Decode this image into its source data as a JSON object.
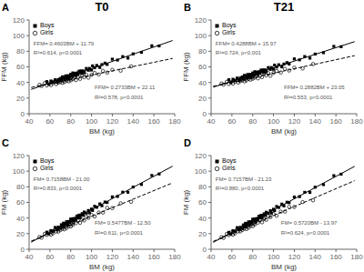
{
  "chart_data": [
    {
      "type": "scatter",
      "title": "T0",
      "panel_label": "A",
      "x_label": "BM (kg)",
      "y_label": "FFM (kg)",
      "xlim": [
        40,
        180
      ],
      "ylim": [
        0,
        120
      ],
      "xticks": [
        40,
        60,
        80,
        100,
        120,
        140,
        160,
        180
      ],
      "yticks": [
        0,
        20,
        40,
        60,
        80,
        100,
        120
      ],
      "legend": "upper left",
      "annotations": [
        "FFM= 0.4603BM + 11.79",
        "R²=0.614, p<0.0001",
        "FFM= 0.2733BM + 22.11",
        "R²=0.578, p<0.0001"
      ],
      "series": [
        {
          "name": "Boys",
          "type": "scatter",
          "marker": "square",
          "color": "#000000",
          "x": [
            57,
            59,
            61,
            63,
            65,
            67,
            68,
            70,
            71,
            72,
            73,
            74,
            75,
            76,
            77,
            78,
            79,
            80,
            81,
            82,
            83,
            84,
            85,
            86,
            87,
            88,
            89,
            90,
            91,
            92,
            93,
            95,
            97,
            98,
            100,
            101,
            103,
            105,
            108,
            110,
            113,
            115,
            120,
            125,
            130,
            135,
            140,
            148,
            158,
            165
          ],
          "values": [
            41.1271,
            37.7477,
            41.8683,
            40.2889,
            43.5095,
            40.5301,
            43.5904,
            45.211,
            42.9713,
            47.2316,
            46.1919,
            44.0522,
            48.4125,
            45.8728,
            48.6331,
            45.1934,
            48.4537,
            50.514,
            47.9743,
            52.2346,
            49.2949,
            51.7552,
            48.9155,
            52.2758,
            50.4361,
            54.4964,
            52.4567,
            54.817,
            51.4773,
            54.7376,
            52.8979,
            57.9185,
            55.6391,
            57.9994,
            55.92,
            61.2803,
            58.8009,
            61.8215,
            59.2024,
            62.923,
            64.8039,
            63.1245,
            69.826,
            68.7275,
            73.129,
            71.2305,
            76.632,
            78.6144,
            87.0174,
            86.8395
          ]
        },
        {
          "name": "Girls",
          "type": "scatter",
          "marker": "open_circle",
          "color": "#000000",
          "x": [
            50,
            52,
            55,
            57,
            59,
            61,
            62,
            63,
            65,
            66,
            67,
            68,
            69,
            70,
            71,
            72,
            73,
            74,
            75,
            76,
            77,
            78,
            79,
            80,
            81,
            82,
            83,
            85,
            87,
            89,
            91,
            93,
            95,
            97,
            100,
            103,
            107,
            111,
            115,
            120,
            128,
            138
          ],
          "values": [
            36.975,
            35.5216,
            39.1415,
            36.1881,
            38.7347,
            36.6813,
            40.8546,
            39.0279,
            41.2745,
            37.9478,
            41.1211,
            39.6944,
            43.2677,
            40.641,
            42.6143,
            39.3876,
            42.4609,
            40.6342,
            44.7075,
            42.3808,
            44.7541,
            41.4274,
            44.5007,
            42.674,
            46.7473,
            44.1206,
            45.7939,
            43.0405,
            46.4871,
            44.6337,
            49.1803,
            46.8269,
            49.5735,
            46.1201,
            49.74,
            52.1599,
            50.2531,
            54.8463,
            52.6395,
            56.206,
            55.0924,
            60.6254
          ]
        },
        {
          "type": "line",
          "line_style": "solid",
          "color": "#000000",
          "x": [
            42,
            178
          ],
          "values": [
            31.1226,
            93.7234
          ]
        },
        {
          "type": "line",
          "line_style": "dashed",
          "color": "#000000",
          "x": [
            42,
            178
          ],
          "values": [
            33.5886,
            70.7574
          ]
        }
      ]
    },
    {
      "type": "scatter",
      "title": "T21",
      "panel_label": "B",
      "x_label": "BM (kg)",
      "y_label": "FFM (kg)",
      "xlim": [
        40,
        180
      ],
      "ylim": [
        0,
        120
      ],
      "xticks": [
        40,
        60,
        80,
        100,
        120,
        140,
        160,
        180
      ],
      "yticks": [
        0,
        20,
        40,
        60,
        80,
        100,
        120
      ],
      "legend": "upper left",
      "annotations": [
        "FFM= 0.4288BM + 15.97",
        "R²=0.724, p<0.001",
        "FFM= 0.2882BM + 23.05",
        "R²=0.553, p<0.0001"
      ],
      "series": [
        {
          "name": "Boys",
          "type": "scatter",
          "marker": "square",
          "color": "#000000",
          "x": [
            57,
            59,
            61,
            63,
            65,
            67,
            68,
            70,
            71,
            72,
            73,
            74,
            75,
            76,
            77,
            78,
            79,
            80,
            81,
            82,
            83,
            84,
            85,
            86,
            87,
            88,
            89,
            90,
            91,
            92,
            93,
            95,
            97,
            98,
            100,
            101,
            103,
            105,
            108,
            110,
            113,
            115,
            120,
            125,
            130,
            135,
            140,
            148,
            158,
            165
          ],
          "values": [
            43.5116,
            40.0692,
            44.1268,
            42.4844,
            45.642,
            42.5996,
            45.6284,
            47.186,
            44.9148,
            49.1436,
            48.0724,
            45.9012,
            50.23,
            47.6588,
            50.3876,
            46.9164,
            50.1452,
            52.174,
            49.6028,
            53.8316,
            50.8604,
            53.2892,
            50.418,
            53.7468,
            51.8756,
            55.9044,
            53.8332,
            56.162,
            52.7908,
            56.0196,
            54.1484,
            59.106,
            56.7636,
            59.0924,
            56.95,
            62.2788,
            59.7364,
            62.694,
            59.9804,
            63.638,
            65.4244,
            63.682,
            70.226,
            68.97,
            73.214,
            71.158,
            76.402,
            78.1324,
            86.2204,
            85.822
          ]
        },
        {
          "name": "Girls",
          "type": "scatter",
          "marker": "open_circle",
          "color": "#000000",
          "x": [
            50,
            52,
            55,
            57,
            59,
            61,
            62,
            63,
            65,
            66,
            67,
            68,
            69,
            70,
            71,
            72,
            73,
            74,
            75,
            76,
            77,
            78,
            79,
            80,
            81,
            82,
            83,
            85,
            87,
            89,
            91,
            93,
            95,
            97,
            100,
            103,
            107,
            111,
            115,
            120,
            128,
            138
          ],
          "values": [
            38.66,
            37.2364,
            40.901,
            37.9774,
            40.5538,
            38.5302,
            42.7184,
            40.9066,
            43.183,
            39.8712,
            43.0594,
            41.6476,
            45.2358,
            42.624,
            44.6122,
            41.4004,
            44.4886,
            42.6768,
            46.765,
            44.4532,
            46.8414,
            43.5296,
            46.6178,
            44.806,
            48.8942,
            46.2824,
            47.9706,
            45.247,
            48.7234,
            46.8998,
            51.4762,
            49.1526,
            51.929,
            48.5054,
            52.17,
            54.6346,
            52.7874,
            57.4402,
            55.293,
            58.934,
            57.9396,
            63.6216
          ]
        },
        {
          "type": "line",
          "line_style": "solid",
          "color": "#000000",
          "x": [
            42,
            178
          ],
          "values": [
            33.9796,
            92.2964
          ]
        },
        {
          "type": "line",
          "line_style": "dashed",
          "color": "#000000",
          "x": [
            42,
            178
          ],
          "values": [
            35.1544,
            74.3496
          ]
        }
      ]
    },
    {
      "type": "scatter",
      "panel_label": "C",
      "x_label": "BM (kg)",
      "y_label": "FM (kg)",
      "xlim": [
        40,
        180
      ],
      "ylim": [
        0,
        120
      ],
      "xticks": [
        40,
        60,
        80,
        100,
        120,
        140,
        160,
        180
      ],
      "yticks": [
        0,
        20,
        40,
        60,
        80,
        100,
        120
      ],
      "legend": "upper left",
      "annotations": [
        "FM= 0.7158BM - 21.00",
        "R²=0.833, p<0.0001",
        "FM= 0.5477BM - 12.50",
        "R²=0.611, p<0.0001"
      ],
      "series": [
        {
          "name": "Boys",
          "type": "scatter",
          "marker": "square",
          "color": "#000000",
          "x": [
            57,
            59,
            61,
            63,
            65,
            67,
            68,
            70,
            71,
            72,
            73,
            74,
            75,
            76,
            77,
            78,
            79,
            80,
            81,
            82,
            83,
            84,
            85,
            86,
            87,
            88,
            89,
            90,
            91,
            92,
            93,
            95,
            97,
            98,
            100,
            101,
            103,
            105,
            108,
            110,
            113,
            115,
            120,
            125,
            130,
            135,
            140,
            148,
            158,
            165
          ],
          "values": [
            21.9006,
            19.7322,
            23.9638,
            23.2954,
            27.927,
            25.8586,
            28.3744,
            27.106,
            31.4218,
            30.1376,
            33.4534,
            30.2692,
            32.985,
            35.3008,
            31.8166,
            35.6324,
            34.3482,
            38.764,
            36.3798,
            39.0956,
            36.3114,
            39.6272,
            38.043,
            42.5588,
            40.3746,
            43.6904,
            40.3062,
            43.722,
            45.6378,
            43.5536,
            47.6694,
            46.301,
            49.6326,
            46.6484,
            51.48,
            49.6958,
            55.0274,
            53.759,
            58.1064,
            55.738,
            60.4854,
            59.917,
            67.096,
            67.675,
            73.154,
            73.033,
            79.712,
            83.0384,
            94.4964,
            96.407
          ]
        },
        {
          "name": "Girls",
          "type": "scatter",
          "marker": "open_circle",
          "color": "#000000",
          "x": [
            50,
            52,
            55,
            57,
            59,
            61,
            62,
            63,
            65,
            66,
            67,
            68,
            69,
            70,
            71,
            72,
            73,
            74,
            75,
            76,
            77,
            78,
            79,
            80,
            81,
            82,
            83,
            85,
            87,
            89,
            91,
            93,
            95,
            97,
            100,
            103,
            107,
            111,
            115,
            120,
            128,
            138
          ],
          "values": [
            15.685,
            14.7804,
            19.7235,
            18.2189,
            21.3143,
            18.6097,
            21.7574,
            20.3051,
            25.5005,
            22.7482,
            25.1959,
            22.6436,
            25.8913,
            24.439,
            28.5867,
            26.2344,
            28.7821,
            25.5298,
            28.9775,
            27.2252,
            31.6729,
            29.4206,
            32.3683,
            29.116,
            32.3637,
            31.3114,
            35.2591,
            33.4545,
            36.5499,
            33.8453,
            38.0407,
            36.9361,
            41.6315,
            40.2269,
            44.07,
            41.9131,
            47.0039,
            46.9947,
            52.9855,
            52.724,
            58.8056,
            60.7826
          ]
        },
        {
          "type": "line",
          "line_style": "solid",
          "color": "#000000",
          "x": [
            42,
            178
          ],
          "values": [
            9.0636,
            106.4124
          ]
        },
        {
          "type": "line",
          "line_style": "dashed",
          "color": "#000000",
          "x": [
            42,
            178
          ],
          "values": [
            10.5034,
            84.9906
          ]
        }
      ]
    },
    {
      "type": "scatter",
      "panel_label": "D",
      "x_label": "BM (kg)",
      "y_label": "FM (kg)",
      "xlim": [
        40,
        180
      ],
      "ylim": [
        0,
        120
      ],
      "xticks": [
        40,
        60,
        80,
        100,
        120,
        140,
        160,
        180
      ],
      "yticks": [
        0,
        20,
        40,
        60,
        80,
        100,
        120
      ],
      "legend": "upper left",
      "annotations": [
        "FM= 0.7157BM - 21.23",
        "R²=0.880, p<0.0001",
        "FM= 0.5720BM - 13.97",
        "R²=0.624, p<0.0001"
      ],
      "series": [
        {
          "name": "Boys",
          "type": "scatter",
          "marker": "square",
          "color": "#000000",
          "x": [
            57,
            59,
            61,
            63,
            65,
            67,
            68,
            70,
            71,
            72,
            73,
            74,
            75,
            76,
            77,
            78,
            79,
            80,
            81,
            82,
            83,
            84,
            85,
            86,
            87,
            88,
            89,
            90,
            91,
            92,
            93,
            95,
            97,
            98,
            100,
            101,
            103,
            105,
            108,
            110,
            113,
            115,
            120,
            125,
            130,
            135,
            140,
            148,
            158,
            165
          ],
          "values": [
            21.6649,
            19.4963,
            23.7277,
            23.0591,
            27.6905,
            25.6219,
            28.1376,
            26.869,
            31.1847,
            29.9004,
            33.2161,
            30.0318,
            32.7475,
            35.0632,
            31.5789,
            35.3946,
            34.1103,
            38.526,
            36.1417,
            38.8574,
            36.0731,
            39.3888,
            37.8045,
            42.3202,
            40.1359,
            43.4516,
            40.0673,
            43.483,
            45.3987,
            43.3144,
            47.4301,
            46.0615,
            49.3929,
            46.4086,
            51.24,
            49.4557,
            54.7871,
            53.5185,
            57.8656,
            55.497,
            60.2441,
            59.6755,
            66.854,
            67.4325,
            72.911,
            72.7895,
            79.468,
            82.7936,
            94.2506,
            96.1605
          ]
        },
        {
          "name": "Girls",
          "type": "scatter",
          "marker": "open_circle",
          "color": "#000000",
          "x": [
            50,
            52,
            55,
            57,
            59,
            61,
            62,
            63,
            65,
            66,
            67,
            68,
            69,
            70,
            71,
            72,
            73,
            74,
            75,
            76,
            77,
            78,
            79,
            80,
            81,
            82,
            83,
            85,
            87,
            89,
            91,
            93,
            95,
            97,
            100,
            103,
            107,
            111,
            115,
            120,
            128,
            138
          ],
          "values": [
            15.43,
            14.574,
            19.59,
            18.134,
            21.278,
            18.622,
            21.794,
            20.366,
            25.61,
            22.882,
            25.354,
            22.826,
            26.098,
            24.67,
            28.842,
            26.514,
            29.086,
            25.858,
            29.33,
            27.602,
            32.074,
            29.846,
            32.818,
            29.59,
            32.862,
            31.834,
            35.806,
            34.05,
            37.194,
            34.538,
            38.782,
            37.726,
            42.47,
            41.114,
            45.03,
            42.946,
            48.134,
            48.222,
            54.31,
            54.17,
            60.446,
            62.666
          ]
        },
        {
          "type": "line",
          "line_style": "solid",
          "color": "#000000",
          "x": [
            42,
            178
          ],
          "values": [
            8.8294,
            106.1646
          ]
        },
        {
          "type": "line",
          "line_style": "dashed",
          "color": "#000000",
          "x": [
            42,
            178
          ],
          "values": [
            10.054,
            87.846
          ]
        }
      ]
    }
  ]
}
